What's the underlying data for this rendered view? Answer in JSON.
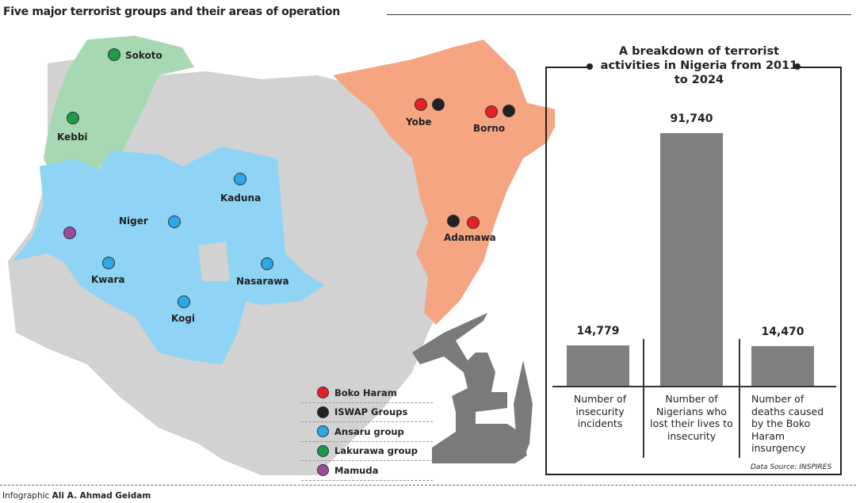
{
  "header": {
    "title": "Five major terrorist groups and their areas of operation"
  },
  "colors": {
    "boko_haram": "#e8202a",
    "iswap": "#222222",
    "ansaru": "#2aa8e8",
    "lakurawa": "#1e9a48",
    "mamuda": "#9b4a9b",
    "ne_region": "#f5a582",
    "nw_region": "#a6d8b2",
    "central_region": "#8fd4f4",
    "base": "#d2d2d2"
  },
  "map": {
    "places": [
      {
        "name": "Sokoto",
        "groups": [
          "lakurawa"
        ]
      },
      {
        "name": "Kebbi",
        "groups": [
          "lakurawa"
        ]
      },
      {
        "name": "Kaduna",
        "groups": [
          "ansaru"
        ]
      },
      {
        "name": "Niger",
        "groups": [
          "ansaru"
        ]
      },
      {
        "name": "Kwara",
        "groups": [
          "ansaru"
        ]
      },
      {
        "name": "Nasarawa",
        "groups": [
          "ansaru"
        ]
      },
      {
        "name": "Kogi",
        "groups": [
          "ansaru"
        ]
      },
      {
        "name": "Yobe",
        "groups": [
          "boko_haram",
          "iswap"
        ]
      },
      {
        "name": "Borno",
        "groups": [
          "boko_haram",
          "iswap"
        ]
      },
      {
        "name": "Adamawa",
        "groups": [
          "iswap",
          "boko_haram"
        ]
      }
    ]
  },
  "legend": [
    {
      "label": "Boko Haram",
      "key": "boko_haram"
    },
    {
      "label": "ISWAP Groups",
      "key": "iswap"
    },
    {
      "label": "Ansaru group",
      "key": "ansaru"
    },
    {
      "label": "Lakurawa group",
      "key": "lakurawa"
    },
    {
      "label": "Mamuda",
      "key": "mamuda"
    }
  ],
  "chart_data": {
    "type": "bar",
    "title": "A breakdown of terrorist activities in Nigeria from 2011 to 2024",
    "categories": [
      "Number of insecurity incidents",
      "Number of Nigerians who lost their lives to insecurity",
      "Number of deaths caused by the Boko Haram insurgency"
    ],
    "values": [
      14779,
      91740,
      14470
    ],
    "value_labels": [
      "14,779",
      "91,740",
      "14,470"
    ],
    "source": "Data Source: INSPIRES"
  },
  "footer": {
    "prefix": "Infographic",
    "author": "Ali A. Ahmad Geidam"
  }
}
